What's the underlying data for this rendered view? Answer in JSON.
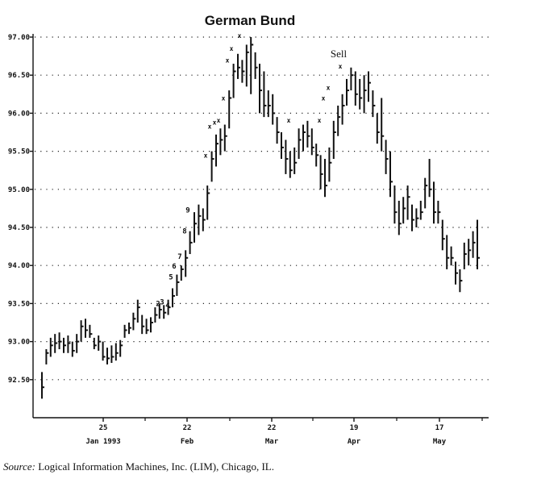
{
  "chart_data": {
    "type": "bar",
    "title": "German Bund",
    "y_ticks": [
      "97.00",
      "96.50",
      "96.00",
      "95.50",
      "95.00",
      "94.50",
      "94.00",
      "93.50",
      "93.00",
      "92.50"
    ],
    "ylim": [
      92.0,
      97.0
    ],
    "grid": true,
    "x_ticks": [
      {
        "day": "25",
        "month": "Jan 1993"
      },
      {
        "day": "22",
        "month": "Feb"
      },
      {
        "day": "22",
        "month": "Mar"
      },
      {
        "day": "19",
        "month": "Apr"
      },
      {
        "day": "17",
        "month": "May"
      }
    ],
    "ohlc": [
      [
        92.25,
        92.6,
        92.4
      ],
      [
        92.7,
        92.9,
        92.85
      ],
      [
        92.8,
        93.05,
        92.95
      ],
      [
        92.85,
        93.1,
        92.98
      ],
      [
        92.9,
        93.12,
        93.0
      ],
      [
        92.85,
        93.05,
        92.95
      ],
      [
        92.85,
        93.08,
        92.98
      ],
      [
        92.8,
        93.0,
        92.88
      ],
      [
        92.85,
        93.1,
        93.0
      ],
      [
        93.0,
        93.28,
        93.2
      ],
      [
        93.05,
        93.3,
        93.15
      ],
      [
        93.05,
        93.22,
        93.1
      ],
      [
        92.9,
        93.05,
        92.95
      ],
      [
        92.88,
        93.08,
        93.0
      ],
      [
        92.75,
        93.0,
        92.8
      ],
      [
        92.7,
        92.92,
        92.78
      ],
      [
        92.72,
        92.95,
        92.8
      ],
      [
        92.75,
        92.98,
        92.85
      ],
      [
        92.8,
        93.02,
        92.95
      ],
      [
        93.05,
        93.22,
        93.15
      ],
      [
        93.1,
        93.25,
        93.18
      ],
      [
        93.15,
        93.38,
        93.3
      ],
      [
        93.25,
        93.55,
        93.45
      ],
      [
        93.1,
        93.35,
        93.2
      ],
      [
        93.1,
        93.3,
        93.15
      ],
      [
        93.12,
        93.32,
        93.25
      ],
      [
        93.25,
        93.45,
        93.35
      ],
      [
        93.3,
        93.5,
        93.42
      ],
      [
        93.3,
        93.48,
        93.38
      ],
      [
        93.35,
        93.55,
        93.45
      ],
      [
        93.45,
        93.7,
        93.6
      ],
      [
        93.6,
        93.88,
        93.78
      ],
      [
        93.8,
        94.0,
        93.95
      ],
      [
        93.85,
        94.2,
        94.1
      ],
      [
        94.15,
        94.45,
        94.3
      ],
      [
        94.3,
        94.7,
        94.55
      ],
      [
        94.4,
        94.8,
        94.65
      ],
      [
        94.45,
        94.75,
        94.6
      ],
      [
        94.6,
        95.05,
        94.95
      ],
      [
        95.1,
        95.5,
        95.4
      ],
      [
        95.3,
        95.72,
        95.6
      ],
      [
        95.45,
        95.8,
        95.65
      ],
      [
        95.5,
        95.85,
        95.7
      ],
      [
        95.8,
        96.3,
        96.2
      ],
      [
        96.2,
        96.65,
        96.55
      ],
      [
        96.45,
        96.78,
        96.6
      ],
      [
        96.4,
        96.7,
        96.55
      ],
      [
        96.35,
        96.9,
        96.8
      ],
      [
        96.25,
        97.0,
        96.9
      ],
      [
        96.45,
        96.8,
        96.6
      ],
      [
        96.0,
        96.65,
        96.3
      ],
      [
        95.95,
        96.55,
        96.1
      ],
      [
        95.95,
        96.3,
        96.1
      ],
      [
        95.85,
        96.25,
        96.0
      ],
      [
        95.6,
        95.95,
        95.75
      ],
      [
        95.4,
        95.75,
        95.55
      ],
      [
        95.2,
        95.65,
        95.4
      ],
      [
        95.15,
        95.5,
        95.25
      ],
      [
        95.2,
        95.55,
        95.35
      ],
      [
        95.4,
        95.8,
        95.65
      ],
      [
        95.5,
        95.85,
        95.75
      ],
      [
        95.55,
        95.9,
        95.7
      ],
      [
        95.45,
        95.8,
        95.55
      ],
      [
        95.3,
        95.6,
        95.45
      ],
      [
        95.0,
        95.45,
        95.2
      ],
      [
        94.9,
        95.4,
        95.05
      ],
      [
        95.1,
        95.55,
        95.35
      ],
      [
        95.4,
        95.9,
        95.75
      ],
      [
        95.7,
        96.1,
        95.95
      ],
      [
        95.85,
        96.25,
        96.1
      ],
      [
        96.1,
        96.45,
        96.3
      ],
      [
        96.3,
        96.6,
        96.5
      ],
      [
        96.1,
        96.55,
        96.25
      ],
      [
        96.05,
        96.45,
        96.2
      ],
      [
        96.0,
        96.5,
        96.3
      ],
      [
        96.15,
        96.55,
        96.4
      ],
      [
        95.95,
        96.3,
        96.1
      ],
      [
        95.6,
        96.0,
        95.75
      ],
      [
        95.5,
        96.2,
        95.7
      ],
      [
        95.2,
        95.65,
        95.4
      ],
      [
        94.9,
        95.5,
        95.1
      ],
      [
        94.55,
        95.05,
        94.7
      ],
      [
        94.4,
        94.85,
        94.55
      ],
      [
        94.55,
        94.9,
        94.75
      ],
      [
        94.6,
        95.05,
        94.9
      ],
      [
        94.45,
        94.8,
        94.6
      ],
      [
        94.5,
        94.75,
        94.62
      ],
      [
        94.6,
        94.85,
        94.7
      ],
      [
        94.75,
        95.15,
        95.05
      ],
      [
        94.9,
        95.4,
        95.0
      ],
      [
        94.55,
        95.1,
        94.7
      ],
      [
        94.55,
        94.85,
        94.7
      ],
      [
        94.2,
        94.6,
        94.35
      ],
      [
        93.95,
        94.4,
        94.1
      ],
      [
        94.0,
        94.25,
        94.1
      ],
      [
        93.75,
        94.05,
        93.9
      ],
      [
        93.65,
        93.95,
        93.8
      ],
      [
        93.95,
        94.3,
        94.15
      ],
      [
        94.0,
        94.35,
        94.2
      ],
      [
        94.1,
        94.45,
        94.3
      ],
      [
        93.95,
        94.6,
        94.1
      ]
    ],
    "wave_labels": [
      {
        "label": "2",
        "value": 93.5
      },
      {
        "label": "3",
        "value": 93.52
      },
      {
        "label": "4",
        "value": 93.48
      },
      {
        "label": "5",
        "value": 93.85
      },
      {
        "label": "6",
        "value": 93.99
      },
      {
        "label": "7",
        "value": 94.12
      },
      {
        "label": "8",
        "value": 94.45
      },
      {
        "label": "9",
        "value": 94.73
      }
    ],
    "x_marks": [
      95.45,
      95.83,
      95.88,
      95.91,
      96.2,
      96.7,
      96.85,
      97.02,
      95.91,
      95.91,
      96.2,
      96.34,
      96.62
    ],
    "annotation": "Sell"
  },
  "source": {
    "prefix": "Source:",
    "text": "Logical Information Machines, Inc. (LIM), Chicago, IL."
  }
}
